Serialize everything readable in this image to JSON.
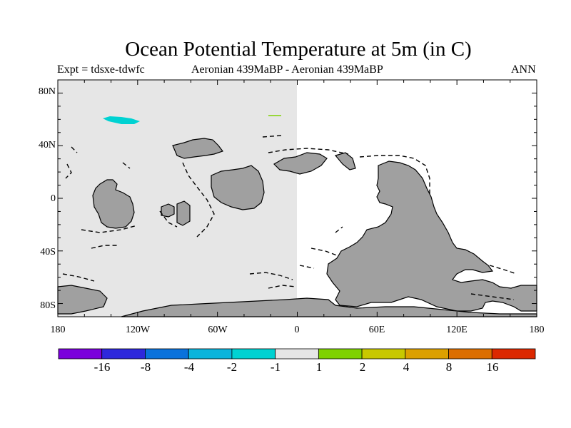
{
  "title": "Ocean Potential Temperature at 5m (in C)",
  "subtitle_left": "Expt = tdsxe-tdwfc",
  "subtitle_center": "Aeronian 439MaBP - Aeronian 439MaBP",
  "subtitle_right": "ANN",
  "map": {
    "x_ticks": [
      "180",
      "120W",
      "60W",
      "0",
      "60E",
      "120E",
      "180"
    ],
    "y_ticks": [
      "80N",
      "40N",
      "0",
      "40S",
      "80S"
    ],
    "colors": {
      "ocean_shaded": "#e6e6e6",
      "ocean_blank": "#ffffff",
      "land": "#a0a0a0",
      "anomaly_cold": "#00d2d2",
      "anomaly_warm": "#7fd200"
    }
  },
  "colorbar": {
    "colors": [
      "#7b00dc",
      "#2e28dc",
      "#0a72dc",
      "#0ab4dc",
      "#00d2d2",
      "#e6e6e6",
      "#7fd200",
      "#c8c800",
      "#dca000",
      "#dc6e00",
      "#dc2800"
    ],
    "labels": [
      "-16",
      "-8",
      "-4",
      "-2",
      "-1",
      "1",
      "2",
      "4",
      "8",
      "16"
    ]
  }
}
